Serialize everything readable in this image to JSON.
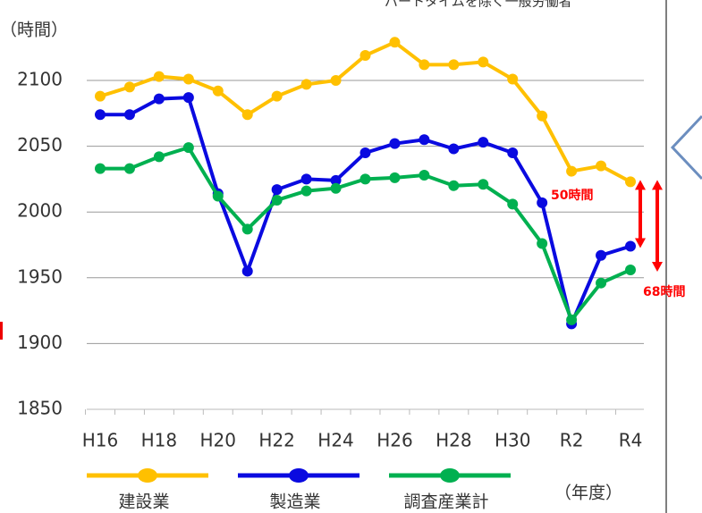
{
  "chart_data": {
    "type": "line",
    "subtitle": "パートタイムを除く一般労働者",
    "y_label": "（時間）",
    "x_label": "（年度）",
    "categories": [
      "H16",
      null,
      "H18",
      null,
      "H20",
      null,
      "H22",
      null,
      "H24",
      null,
      "H26",
      null,
      "H28",
      null,
      "H30",
      null,
      "R2",
      null,
      "R4"
    ],
    "series": [
      {
        "name": "建設業",
        "color": "#ffc000",
        "values": [
          2088,
          2095,
          2103,
          2101,
          2092,
          2074,
          2088,
          2097,
          2100,
          2119,
          2129,
          2112,
          2112,
          2114,
          2101,
          2073,
          2031,
          2035,
          2023
        ]
      },
      {
        "name": "製造業",
        "color": "#0a0ae0",
        "values": [
          2074,
          2074,
          2086,
          2087,
          2014,
          1955,
          2017,
          2025,
          2024,
          2045,
          2052,
          2055,
          2048,
          2053,
          2045,
          2007,
          1915,
          1967,
          1974
        ]
      },
      {
        "name": "調査産業計",
        "color": "#00b050",
        "values": [
          2033,
          2033,
          2042,
          2049,
          2012,
          1987,
          2009,
          2016,
          2018,
          2025,
          2026,
          2028,
          2020,
          2021,
          2006,
          1976,
          1918,
          1946,
          1956
        ]
      }
    ],
    "annotations": [
      "50時間",
      "68時間"
    ],
    "ylim": [
      1850,
      2100
    ],
    "yticks": [
      1850,
      1900,
      1950,
      2000,
      2050,
      2100
    ],
    "grid": true,
    "legend": "bottom"
  }
}
